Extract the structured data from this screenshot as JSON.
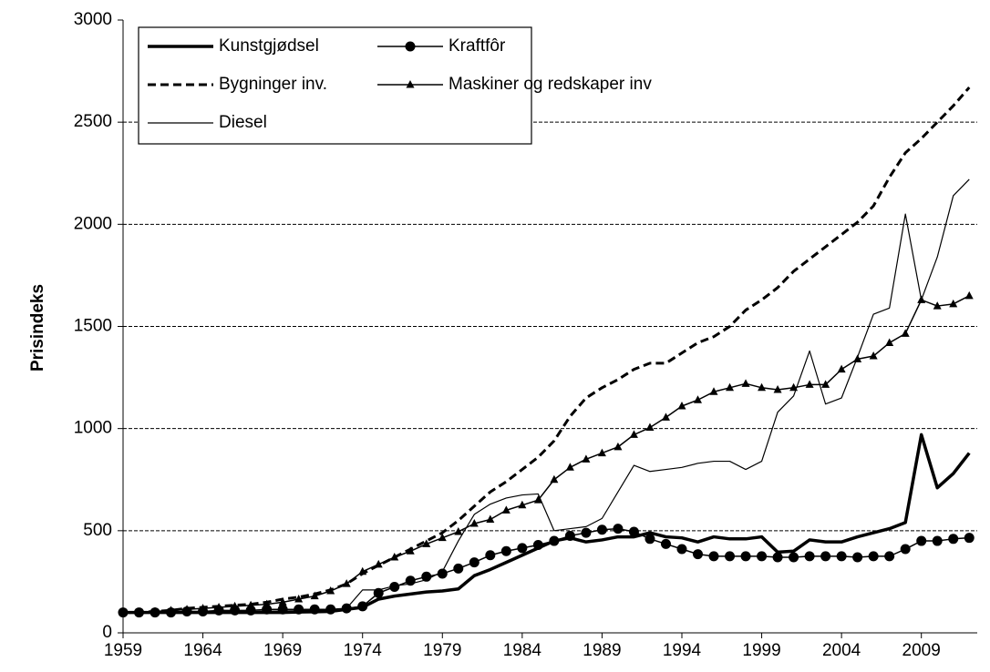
{
  "chart_data": {
    "type": "line",
    "y_label": "Prisindeks",
    "x": [
      1959,
      1960,
      1961,
      1962,
      1963,
      1964,
      1965,
      1966,
      1967,
      1968,
      1969,
      1970,
      1971,
      1972,
      1973,
      1974,
      1975,
      1976,
      1977,
      1978,
      1979,
      1980,
      1981,
      1982,
      1983,
      1984,
      1985,
      1986,
      1987,
      1988,
      1989,
      1990,
      1991,
      1992,
      1993,
      1994,
      1995,
      1996,
      1997,
      1998,
      1999,
      2000,
      2001,
      2002,
      2003,
      2004,
      2005,
      2006,
      2007,
      2008,
      2009,
      2010,
      2011,
      2012
    ],
    "xlim": [
      1959,
      2012.5
    ],
    "xticks": [
      1959,
      1964,
      1969,
      1974,
      1979,
      1984,
      1989,
      1994,
      1999,
      2004,
      2009
    ],
    "ylim": [
      0,
      3000
    ],
    "yticks": [
      0,
      500,
      1000,
      1500,
      2000,
      2500,
      3000
    ],
    "grid": true,
    "legend": "upper left",
    "series": [
      {
        "name": "Kunstgjødsel",
        "color": "#000000",
        "line_width": 3.5,
        "line_style": "solid",
        "marker": "none",
        "values": [
          100,
          100,
          100,
          100,
          100,
          100,
          100,
          100,
          100,
          100,
          100,
          102,
          103,
          105,
          115,
          125,
          165,
          180,
          190,
          200,
          205,
          215,
          280,
          310,
          345,
          380,
          415,
          450,
          465,
          445,
          455,
          470,
          470,
          490,
          470,
          465,
          445,
          470,
          460,
          460,
          470,
          395,
          400,
          455,
          445,
          445,
          470,
          490,
          510,
          540,
          970,
          710,
          780,
          880
        ]
      },
      {
        "name": "Kraftfôr",
        "color": "#000000",
        "line_width": 1.5,
        "line_style": "solid",
        "marker": "circle",
        "values": [
          100,
          100,
          100,
          100,
          105,
          105,
          110,
          110,
          110,
          115,
          115,
          115,
          115,
          115,
          120,
          130,
          195,
          225,
          255,
          275,
          290,
          315,
          345,
          380,
          400,
          415,
          430,
          450,
          475,
          490,
          505,
          510,
          495,
          460,
          435,
          410,
          385,
          375,
          375,
          375,
          375,
          370,
          370,
          375,
          375,
          375,
          370,
          375,
          375,
          410,
          450,
          450,
          460,
          465
        ]
      },
      {
        "name": "Bygninger inv.",
        "color": "#000000",
        "line_width": 3,
        "line_style": "dashed",
        "marker": "none",
        "values": [
          100,
          100,
          105,
          110,
          120,
          125,
          130,
          135,
          140,
          150,
          165,
          175,
          190,
          210,
          240,
          290,
          330,
          370,
          410,
          450,
          490,
          550,
          620,
          690,
          740,
          800,
          860,
          940,
          1060,
          1150,
          1200,
          1240,
          1290,
          1320,
          1320,
          1370,
          1420,
          1450,
          1500,
          1580,
          1630,
          1690,
          1770,
          1830,
          1890,
          1950,
          2010,
          2090,
          2230,
          2350,
          2420,
          2500,
          2580,
          2670
        ]
      },
      {
        "name": "Maskiner og redskaper inv",
        "color": "#000000",
        "line_width": 1.5,
        "line_style": "solid",
        "marker": "triangle",
        "values": [
          100,
          100,
          105,
          110,
          115,
          120,
          125,
          130,
          135,
          140,
          150,
          165,
          180,
          205,
          240,
          300,
          335,
          370,
          400,
          435,
          465,
          495,
          535,
          555,
          600,
          625,
          650,
          750,
          810,
          850,
          880,
          910,
          970,
          1005,
          1055,
          1110,
          1140,
          1180,
          1200,
          1220,
          1200,
          1190,
          1200,
          1215,
          1215,
          1290,
          1340,
          1355,
          1420,
          1465,
          1630,
          1600,
          1610,
          1650
        ]
      },
      {
        "name": "Diesel",
        "color": "#000000",
        "line_width": 1.2,
        "line_style": "solid",
        "marker": "none",
        "values": [
          100,
          100,
          100,
          100,
          102,
          103,
          104,
          105,
          105,
          106,
          107,
          108,
          110,
          112,
          120,
          210,
          210,
          230,
          240,
          260,
          300,
          450,
          580,
          630,
          660,
          675,
          680,
          500,
          510,
          520,
          560,
          690,
          820,
          790,
          800,
          810,
          830,
          840,
          840,
          800,
          840,
          1080,
          1160,
          1380,
          1120,
          1150,
          1350,
          1560,
          1590,
          2050,
          1630,
          1840,
          2140,
          2220
        ]
      }
    ]
  }
}
